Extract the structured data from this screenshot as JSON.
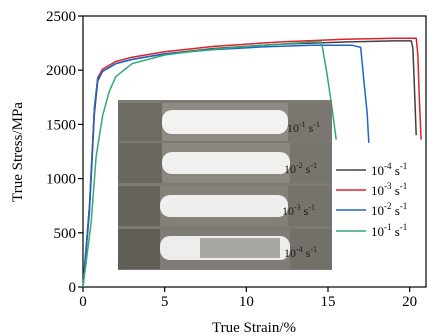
{
  "chart_data": {
    "type": "line",
    "title": "",
    "xlabel": "True Strain/%",
    "ylabel": "True Stress/MPa",
    "xlim": [
      0,
      21
    ],
    "ylim": [
      0,
      2500
    ],
    "x_ticks": [
      0,
      5,
      10,
      15,
      20
    ],
    "y_ticks": [
      0,
      500,
      1000,
      1500,
      2000,
      2500
    ],
    "grid": false,
    "legend_position": "right",
    "series": [
      {
        "name": "10-4 s-1",
        "label_base": "10",
        "label_exp": "-4",
        "label_unit": "s",
        "label_unit_exp": "-1",
        "color": "#404040",
        "points": [
          [
            0,
            0
          ],
          [
            0.4,
            700
          ],
          [
            0.7,
            1600
          ],
          [
            0.9,
            1900
          ],
          [
            1.2,
            1990
          ],
          [
            2,
            2060
          ],
          [
            3,
            2100
          ],
          [
            5,
            2150
          ],
          [
            8,
            2200
          ],
          [
            12,
            2240
          ],
          [
            16,
            2260
          ],
          [
            19,
            2270
          ],
          [
            20.1,
            2270
          ],
          [
            20.2,
            2200
          ],
          [
            20.3,
            1800
          ],
          [
            20.4,
            1400
          ]
        ]
      },
      {
        "name": "10-3 s-1",
        "label_base": "10",
        "label_exp": "-3",
        "label_unit": "s",
        "label_unit_exp": "-1",
        "color": "#e0202a",
        "points": [
          [
            0,
            0
          ],
          [
            0.4,
            750
          ],
          [
            0.7,
            1650
          ],
          [
            0.9,
            1930
          ],
          [
            1.2,
            2010
          ],
          [
            2,
            2080
          ],
          [
            3,
            2120
          ],
          [
            5,
            2170
          ],
          [
            8,
            2220
          ],
          [
            12,
            2260
          ],
          [
            16,
            2285
          ],
          [
            19,
            2295
          ],
          [
            20.4,
            2295
          ],
          [
            20.5,
            2150
          ],
          [
            20.6,
            1700
          ],
          [
            20.7,
            1360
          ]
        ]
      },
      {
        "name": "10-2 s-1",
        "label_base": "10",
        "label_exp": "-2",
        "label_unit": "s",
        "label_unit_exp": "-1",
        "color": "#1f66c8",
        "points": [
          [
            0,
            0
          ],
          [
            0.4,
            750
          ],
          [
            0.7,
            1650
          ],
          [
            0.9,
            1920
          ],
          [
            1.2,
            1990
          ],
          [
            2,
            2060
          ],
          [
            3,
            2100
          ],
          [
            5,
            2150
          ],
          [
            8,
            2190
          ],
          [
            11,
            2215
          ],
          [
            14,
            2230
          ],
          [
            16.5,
            2230
          ],
          [
            17,
            2210
          ],
          [
            17.2,
            1900
          ],
          [
            17.4,
            1600
          ],
          [
            17.5,
            1330
          ]
        ]
      },
      {
        "name": "10-1 s-1",
        "label_base": "10",
        "label_exp": "-1",
        "label_unit": "s",
        "label_unit_exp": "-1",
        "color": "#2eaa7a",
        "points": [
          [
            0,
            0
          ],
          [
            0.5,
            600
          ],
          [
            0.8,
            1200
          ],
          [
            1.2,
            1580
          ],
          [
            1.6,
            1800
          ],
          [
            2,
            1940
          ],
          [
            3,
            2060
          ],
          [
            5,
            2140
          ],
          [
            7,
            2180
          ],
          [
            10,
            2220
          ],
          [
            12,
            2240
          ],
          [
            14,
            2260
          ],
          [
            14.6,
            2260
          ],
          [
            14.9,
            2000
          ],
          [
            15.2,
            1700
          ],
          [
            15.5,
            1360
          ]
        ]
      }
    ]
  },
  "photo": {
    "labels": [
      {
        "base": "10",
        "exp": "-1",
        "unit": "s",
        "unit_exp": "-1"
      },
      {
        "base": "10",
        "exp": "-2",
        "unit": "s",
        "unit_exp": "-1"
      },
      {
        "base": "10",
        "exp": "-3",
        "unit": "s",
        "unit_exp": "-1"
      },
      {
        "base": "10",
        "exp": "-4",
        "unit": "s",
        "unit_exp": "-1"
      }
    ]
  }
}
